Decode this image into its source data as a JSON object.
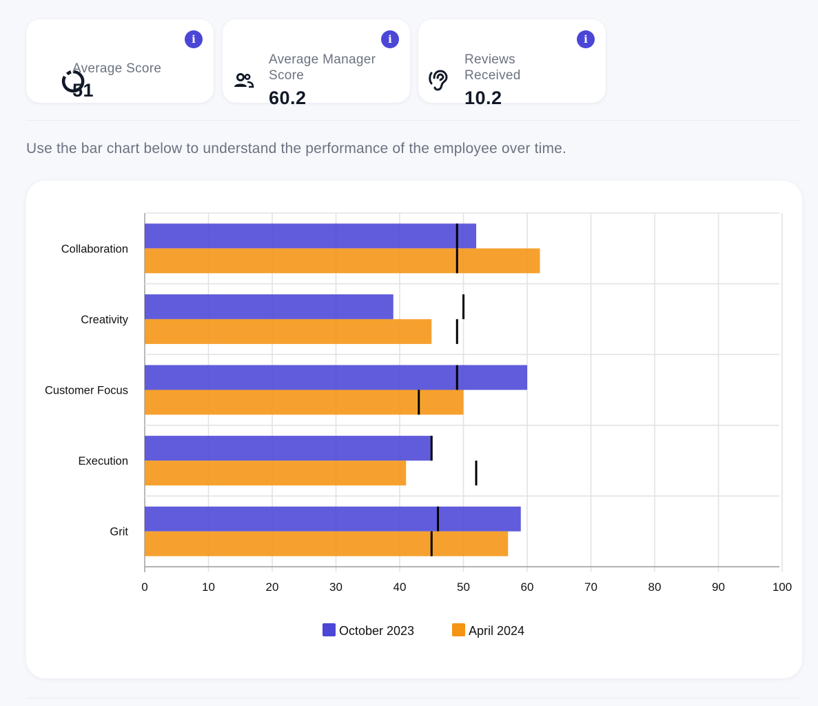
{
  "cards": [
    {
      "label": "Average Score",
      "value": "51",
      "icon": "donut-chart-icon",
      "info_icon": "info-icon"
    },
    {
      "label": "Average Manager Score",
      "value": "60.2",
      "icon": "users-icon",
      "info_icon": "info-icon"
    },
    {
      "label": "Reviews Received",
      "value": "10.2",
      "icon": "ear-icon",
      "info_icon": "info-icon"
    }
  ],
  "description": "Use the bar chart below to understand the performance of the employee over time.",
  "chart_data": {
    "type": "bar",
    "orientation": "horizontal",
    "categories": [
      "Collaboration",
      "Creativity",
      "Customer Focus",
      "Execution",
      "Grit"
    ],
    "series": [
      {
        "name": "October 2023",
        "color": "#4b46d6",
        "values": [
          52,
          39,
          60,
          45,
          59
        ],
        "markers": [
          49,
          50,
          49,
          45,
          46
        ]
      },
      {
        "name": "April 2024",
        "color": "#f59412",
        "values": [
          62,
          45,
          50,
          41,
          57
        ],
        "markers": [
          49,
          49,
          43,
          52,
          45
        ]
      }
    ],
    "xlim": [
      0,
      100
    ],
    "xticks": [
      0,
      10,
      20,
      30,
      40,
      50,
      60,
      70,
      80,
      90,
      100
    ],
    "grid": true,
    "legend": "bottom",
    "title": "",
    "xlabel": "",
    "ylabel": ""
  }
}
